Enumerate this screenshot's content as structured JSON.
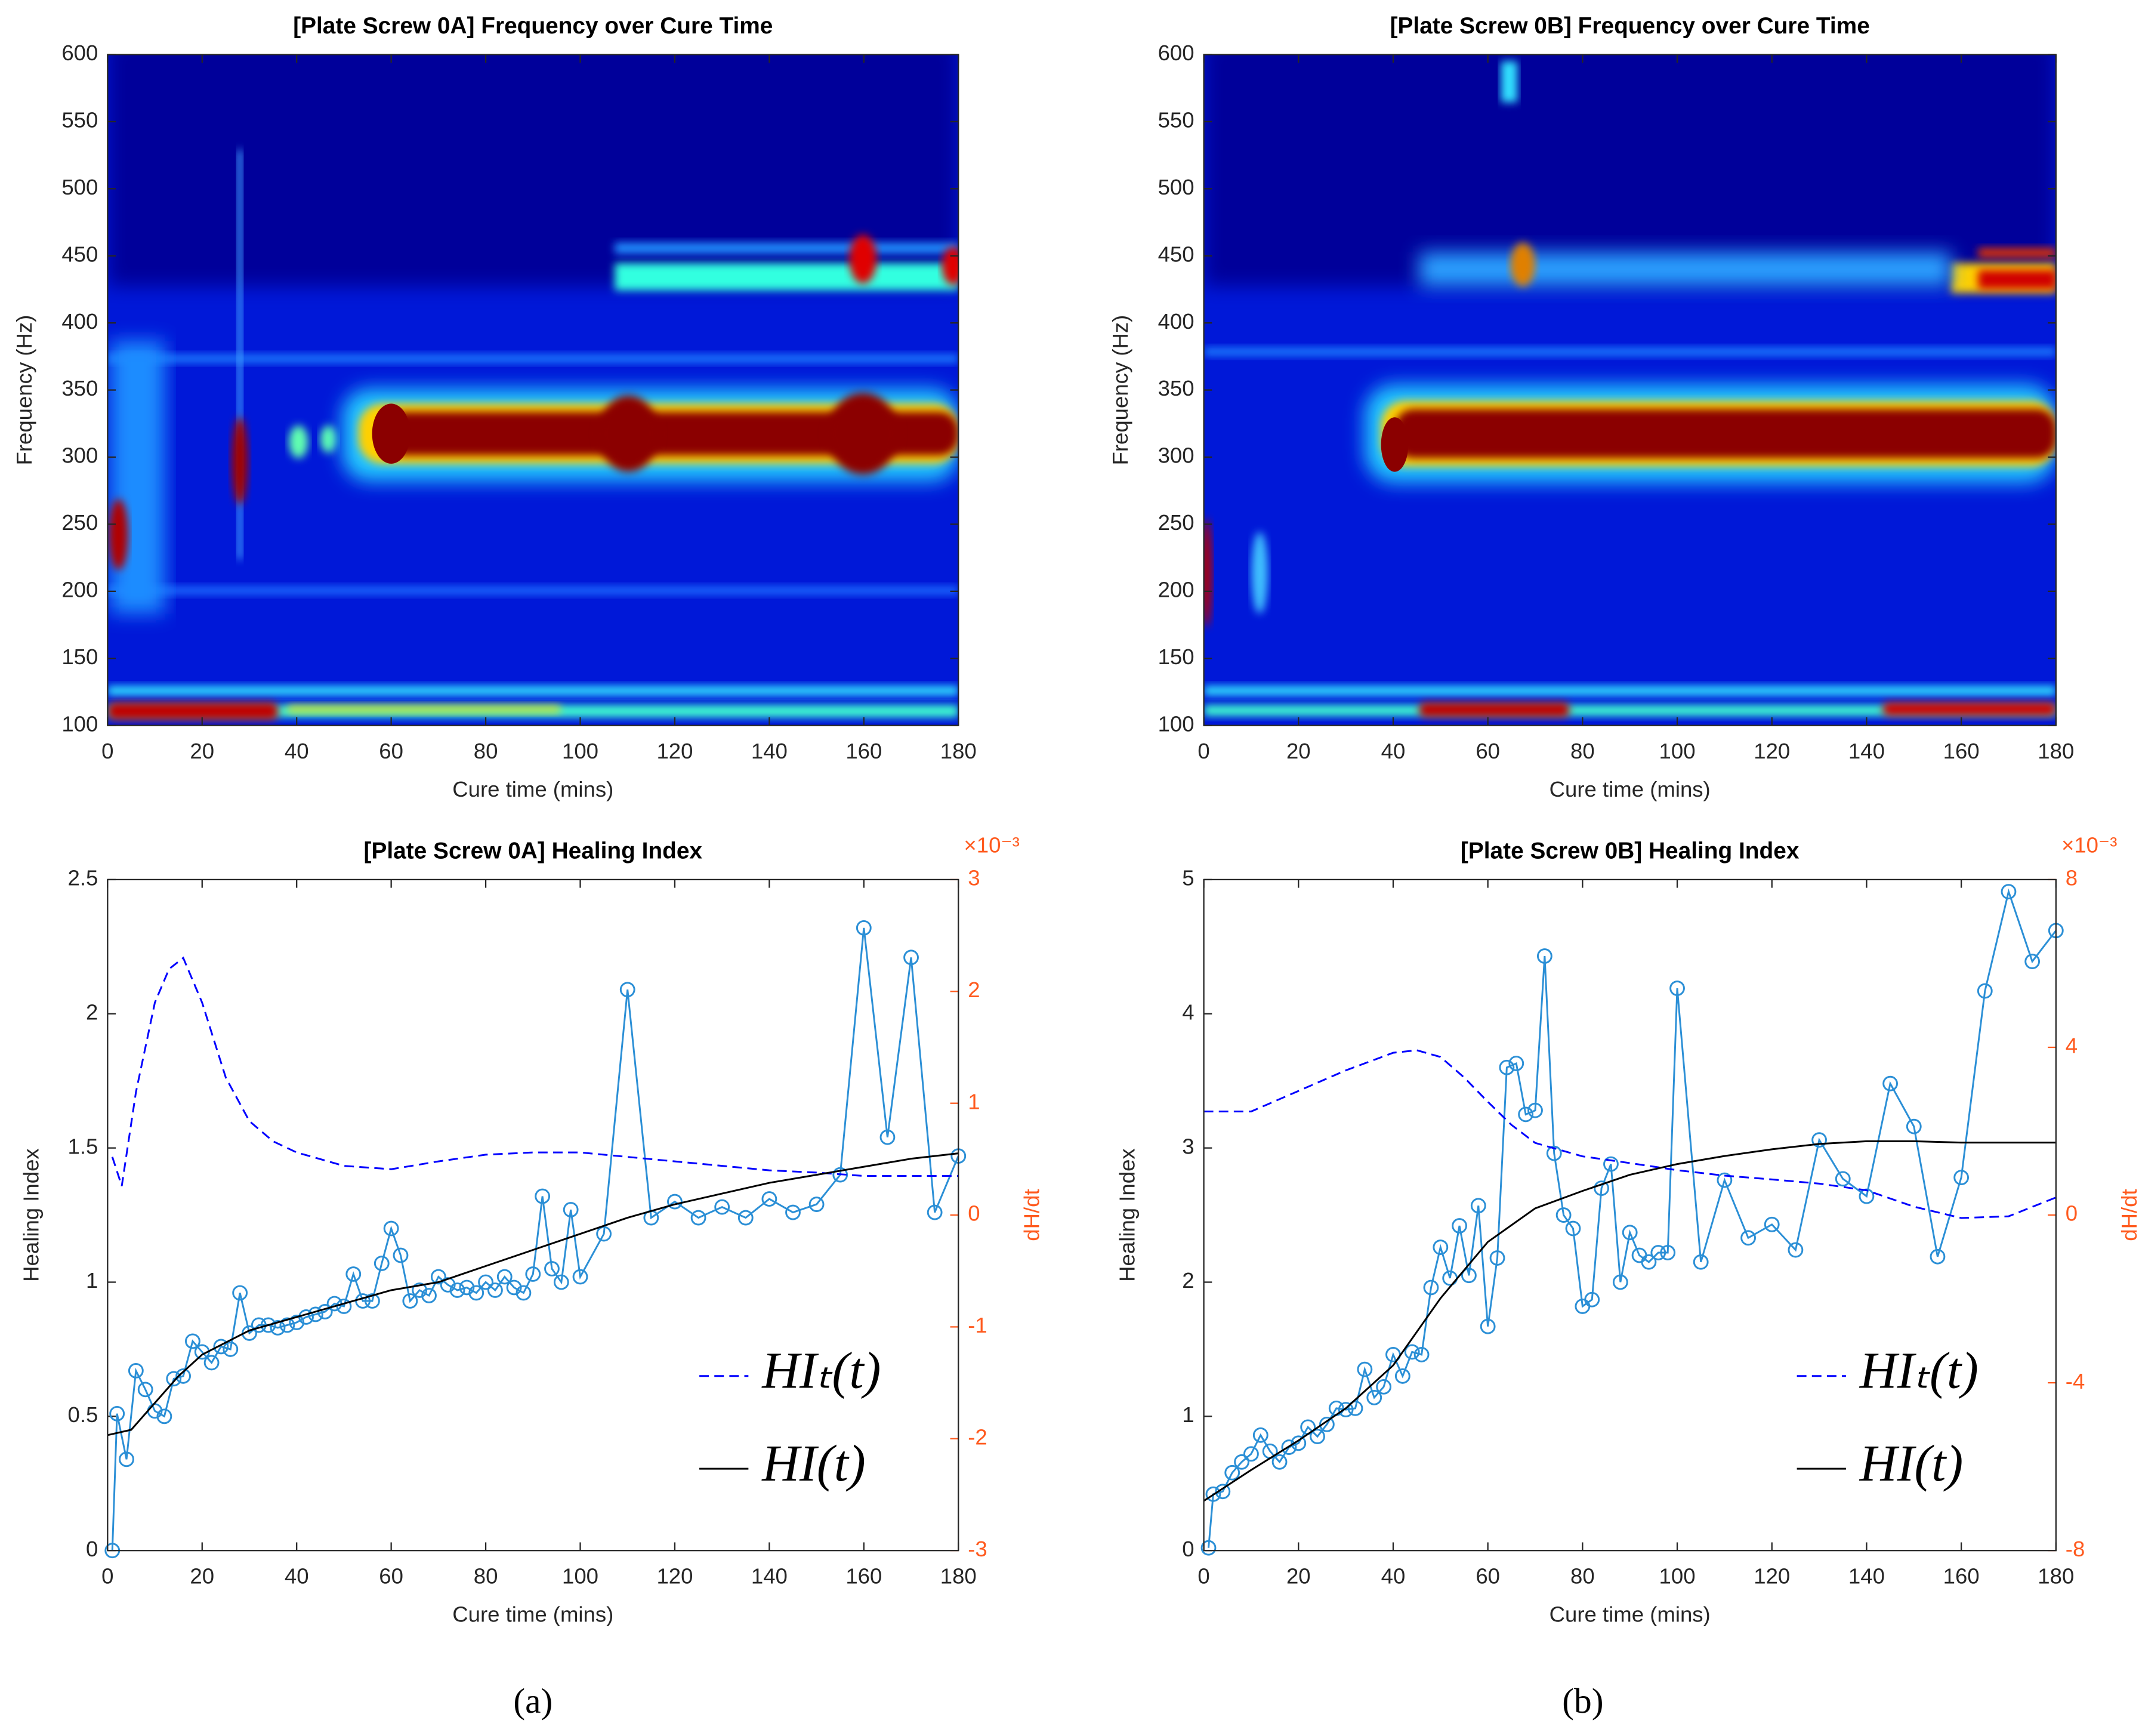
{
  "captions": [
    "(a)",
    "(b)"
  ],
  "chart_data": [
    {
      "type": "spectrogram",
      "title": "[Plate Screw 0A] Frequency over Cure Time",
      "xlabel": "Cure time (mins)",
      "ylabel": "Frequency (Hz)",
      "xlim": [
        0,
        180
      ],
      "xticks": [
        0,
        20,
        40,
        60,
        80,
        100,
        120,
        140,
        160,
        180
      ],
      "ylim": [
        100,
        600
      ],
      "yticks": [
        100,
        150,
        200,
        250,
        300,
        350,
        400,
        450,
        500,
        550,
        600
      ]
    },
    {
      "type": "spectrogram",
      "title": "[Plate Screw 0B] Frequency over Cure Time",
      "xlabel": "Cure time (mins)",
      "ylabel": "Frequency (Hz)",
      "xlim": [
        0,
        180
      ],
      "xticks": [
        0,
        20,
        40,
        60,
        80,
        100,
        120,
        140,
        160,
        180
      ],
      "ylim": [
        100,
        600
      ],
      "yticks": [
        100,
        150,
        200,
        250,
        300,
        350,
        400,
        450,
        500,
        550,
        600
      ]
    },
    {
      "type": "line",
      "title": "[Plate Screw 0A]  Healing Index",
      "xlabel": "Cure time (mins)",
      "ylabel": "Healing Index",
      "y2label": "dH/dt",
      "y2exponent": "×10⁻³",
      "xlim": [
        0,
        180
      ],
      "xticks": [
        0,
        20,
        40,
        60,
        80,
        100,
        120,
        140,
        160,
        180
      ],
      "ylim": [
        0,
        2.5
      ],
      "yticks": [
        0,
        0.5,
        1,
        1.5,
        2,
        2.5
      ],
      "y2lim": [
        -0.003,
        0.003
      ],
      "y2ticks": [
        {
          "value": -0.003,
          "label": "-3"
        },
        {
          "value": -0.002,
          "label": "-2"
        },
        {
          "value": -0.001,
          "label": "-1"
        },
        0,
        {
          "value": 0.001,
          "label": "1"
        },
        {
          "value": 0.002,
          "label": "2"
        },
        {
          "value": 0.003,
          "label": "3"
        }
      ],
      "legend": "lower right",
      "series": [
        {
          "color": "#2b8fd6",
          "marker": "circle",
          "x": [
            1,
            2,
            4,
            6,
            8,
            10,
            12,
            14,
            16,
            18,
            20,
            22,
            24,
            26,
            28,
            30,
            32,
            34,
            36,
            38,
            40,
            42,
            44,
            46,
            48,
            50,
            52,
            54,
            56,
            58,
            60,
            62,
            64,
            66,
            68,
            70,
            72,
            74,
            76,
            78,
            80,
            82,
            84,
            86,
            88,
            90,
            92,
            94,
            96,
            98,
            100,
            105,
            110,
            115,
            120,
            125,
            130,
            135,
            140,
            145,
            150,
            155,
            160,
            165,
            170,
            175,
            180
          ],
          "values": [
            0,
            0.51,
            0.34,
            0.67,
            0.6,
            0.52,
            0.5,
            0.64,
            0.65,
            0.78,
            0.74,
            0.7,
            0.76,
            0.75,
            0.96,
            0.81,
            0.84,
            0.84,
            0.83,
            0.84,
            0.85,
            0.87,
            0.88,
            0.89,
            0.92,
            0.91,
            1.03,
            0.93,
            0.93,
            1.07,
            1.2,
            1.1,
            0.93,
            0.97,
            0.95,
            1.02,
            0.99,
            0.97,
            0.98,
            0.96,
            1.0,
            0.97,
            1.02,
            0.98,
            0.96,
            1.03,
            1.32,
            1.05,
            1.0,
            1.27,
            1.02,
            1.18,
            2.09,
            1.24,
            1.3,
            1.24,
            1.28,
            1.24,
            1.31,
            1.26,
            1.29,
            1.4,
            2.32,
            1.54,
            2.21,
            1.26,
            1.47
          ]
        },
        {
          "name": "HIₜ(t)",
          "color": "#0000ff",
          "dash": true,
          "axis": "y2",
          "x": [
            1,
            3,
            6,
            10,
            13,
            16,
            20,
            25,
            30,
            35,
            40,
            50,
            60,
            70,
            80,
            90,
            100,
            110,
            120,
            130,
            140,
            150,
            160,
            170,
            180
          ],
          "values": [
            0.00052,
            0.00026,
            0.0011,
            0.0019,
            0.0022,
            0.0023,
            0.0019,
            0.00123,
            0.00084,
            0.00066,
            0.00056,
            0.00044,
            0.00041,
            0.00048,
            0.00054,
            0.00056,
            0.00056,
            0.00052,
            0.00048,
            0.00044,
            0.0004,
            0.00038,
            0.00035,
            0.00035,
            0.00035
          ]
        },
        {
          "name": "HI(t)",
          "color": "#000000",
          "x": [
            0,
            5,
            10,
            15,
            20,
            30,
            40,
            50,
            60,
            70,
            80,
            90,
            100,
            110,
            120,
            130,
            140,
            150,
            160,
            170,
            180
          ],
          "values": [
            0.43,
            0.45,
            0.55,
            0.65,
            0.73,
            0.82,
            0.87,
            0.92,
            0.97,
            1.0,
            1.06,
            1.12,
            1.18,
            1.24,
            1.29,
            1.33,
            1.37,
            1.4,
            1.43,
            1.46,
            1.48
          ]
        }
      ]
    },
    {
      "type": "line",
      "title": "[Plate Screw 0B] Healing Index",
      "xlabel": "Cure time (mins)",
      "ylabel": "Healing Index",
      "y2label": "dH/dt",
      "y2exponent": "×10⁻³",
      "xlim": [
        0,
        180
      ],
      "xticks": [
        0,
        20,
        40,
        60,
        80,
        100,
        120,
        140,
        160,
        180
      ],
      "ylim": [
        0,
        5
      ],
      "yticks": [
        0,
        1,
        2,
        3,
        4,
        5
      ],
      "y2lim": [
        -0.008,
        0.008
      ],
      "y2ticks": [
        {
          "value": -0.008,
          "label": "-8"
        },
        {
          "value": -0.004,
          "label": "-4"
        },
        0,
        {
          "value": 0.004,
          "label": "4"
        },
        {
          "value": 0.008,
          "label": "8"
        }
      ],
      "legend": "lower right",
      "series": [
        {
          "color": "#2b8fd6",
          "marker": "circle",
          "x": [
            1,
            2,
            4,
            6,
            8,
            10,
            12,
            14,
            16,
            18,
            20,
            22,
            24,
            26,
            28,
            30,
            32,
            34,
            36,
            38,
            40,
            42,
            44,
            46,
            48,
            50,
            52,
            54,
            56,
            58,
            60,
            62,
            64,
            66,
            68,
            70,
            72,
            74,
            76,
            78,
            80,
            82,
            84,
            86,
            88,
            90,
            92,
            94,
            96,
            98,
            100,
            105,
            110,
            115,
            120,
            125,
            130,
            135,
            140,
            145,
            150,
            155,
            160,
            165,
            170,
            175,
            180
          ],
          "values": [
            0.02,
            0.42,
            0.44,
            0.58,
            0.66,
            0.72,
            0.86,
            0.74,
            0.66,
            0.77,
            0.8,
            0.92,
            0.85,
            0.94,
            1.06,
            1.05,
            1.06,
            1.35,
            1.14,
            1.22,
            1.46,
            1.3,
            1.48,
            1.46,
            1.96,
            2.26,
            2.03,
            2.42,
            2.05,
            2.57,
            1.67,
            2.18,
            3.6,
            3.63,
            3.25,
            3.28,
            4.43,
            2.96,
            2.5,
            2.4,
            1.82,
            1.87,
            2.7,
            2.88,
            2.0,
            2.37,
            2.2,
            2.15,
            2.22,
            2.22,
            4.19,
            2.15,
            2.76,
            2.33,
            2.43,
            2.24,
            3.06,
            2.77,
            2.64,
            3.48,
            3.16,
            2.19,
            2.78,
            4.17,
            4.91,
            4.39,
            4.62
          ]
        },
        {
          "name": "HIₜ(t)",
          "color": "#0000ff",
          "dash": true,
          "axis": "y2",
          "x": [
            0,
            10,
            20,
            30,
            40,
            45,
            50,
            55,
            60,
            65,
            70,
            80,
            90,
            100,
            110,
            120,
            130,
            140,
            150,
            160,
            170,
            180
          ],
          "values": [
            0.00247,
            0.00247,
            0.00296,
            0.00345,
            0.00387,
            0.00393,
            0.00377,
            0.00328,
            0.0027,
            0.00215,
            0.00172,
            0.0014,
            0.00124,
            0.00107,
            0.00094,
            0.00085,
            0.00075,
            0.00059,
            0.0002,
            -7e-05,
            -3e-05,
            0.00042
          ]
        },
        {
          "name": "HI(t)",
          "color": "#000000",
          "x": [
            0,
            10,
            20,
            30,
            40,
            50,
            60,
            70,
            80,
            90,
            100,
            110,
            120,
            130,
            140,
            150,
            160,
            170,
            180
          ],
          "values": [
            0.37,
            0.6,
            0.82,
            1.06,
            1.38,
            1.88,
            2.3,
            2.55,
            2.68,
            2.8,
            2.88,
            2.94,
            2.99,
            3.03,
            3.05,
            3.05,
            3.04,
            3.04,
            3.04
          ]
        }
      ]
    }
  ]
}
